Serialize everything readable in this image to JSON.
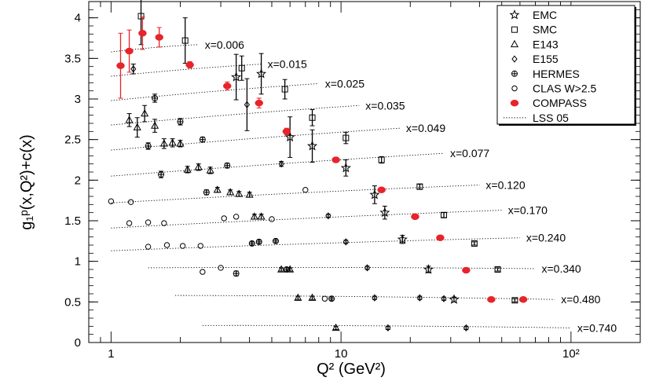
{
  "chart_data": {
    "type": "scatter",
    "title": "",
    "xlabel": "Q² (GeV²)",
    "ylabel": "g₁ᵖ(x,Q²)+c(x)",
    "x_scale": "log",
    "xlim": [
      0.8,
      200
    ],
    "ylim": [
      0,
      4.2
    ],
    "y_ticks": [
      0,
      0.5,
      1,
      1.5,
      2,
      2.5,
      3,
      3.5,
      4
    ],
    "y_tick_labels": [
      "0",
      "0.5",
      "1",
      "1.5",
      "2",
      "2.5",
      "3",
      "3.5",
      "4"
    ],
    "x_tick_labels": [
      {
        "value": 1,
        "label": "1"
      },
      {
        "value": 10,
        "label": "10"
      },
      {
        "value": 100,
        "label": "10²"
      }
    ],
    "grid": false,
    "legend_position": "top-right",
    "legend": [
      {
        "name": "EMC",
        "marker": "star"
      },
      {
        "name": "SMC",
        "marker": "square"
      },
      {
        "name": "E143",
        "marker": "triangle"
      },
      {
        "name": "E155",
        "marker": "diamond"
      },
      {
        "name": "HERMES",
        "marker": "cross-circle"
      },
      {
        "name": "CLAS W>2.5",
        "marker": "circle"
      },
      {
        "name": "COMPASS",
        "marker": "red-dot"
      },
      {
        "name": "LSS 05",
        "marker": "dotted-line"
      }
    ],
    "curves": [
      {
        "label": "x=0.006",
        "xrange": [
          1.0,
          2.4
        ],
        "y": [
          3.58,
          3.67
        ]
      },
      {
        "label": "x=0.015",
        "xrange": [
          1.0,
          4.5
        ],
        "y": [
          3.28,
          3.43
        ]
      },
      {
        "label": "x=0.025",
        "xrange": [
          1.0,
          8.0
        ],
        "y": [
          2.98,
          3.19
        ]
      },
      {
        "label": "x=0.035",
        "xrange": [
          1.0,
          12.0
        ],
        "y": [
          2.68,
          2.92
        ]
      },
      {
        "label": "x=0.049",
        "xrange": [
          1.0,
          18.0
        ],
        "y": [
          2.37,
          2.64
        ]
      },
      {
        "label": "x=0.077",
        "xrange": [
          1.0,
          28.0
        ],
        "y": [
          2.05,
          2.33
        ]
      },
      {
        "label": "x=0.120",
        "xrange": [
          1.0,
          40.0
        ],
        "y": [
          1.72,
          1.94
        ]
      },
      {
        "label": "x=0.170",
        "xrange": [
          1.0,
          50.0
        ],
        "y": [
          1.41,
          1.63
        ]
      },
      {
        "label": "x=0.240",
        "xrange": [
          1.0,
          60.0
        ],
        "y": [
          1.13,
          1.29
        ]
      },
      {
        "label": "x=0.340",
        "xrange": [
          1.45,
          70.0
        ],
        "y": [
          0.92,
          0.91
        ]
      },
      {
        "label": "x=0.480",
        "xrange": [
          1.9,
          85.0
        ],
        "y": [
          0.58,
          0.53
        ]
      },
      {
        "label": "x=0.740",
        "xrange": [
          2.5,
          100.0
        ],
        "y": [
          0.21,
          0.18
        ]
      }
    ],
    "series": [
      {
        "name": "EMC",
        "points": [
          [
            3.5,
            3.27,
            0.28
          ],
          [
            4.5,
            3.31,
            0.25
          ],
          [
            6.0,
            2.53,
            0.25
          ],
          [
            7.5,
            2.42,
            0.2
          ],
          [
            10.5,
            2.15,
            0.1
          ],
          [
            14.0,
            1.82,
            0.11
          ],
          [
            15.5,
            1.6,
            0.08
          ],
          [
            18.5,
            1.27,
            0.05
          ],
          [
            24.0,
            0.9,
            0.04
          ],
          [
            31.0,
            0.53,
            0.03
          ]
        ]
      },
      {
        "name": "SMC",
        "points": [
          [
            1.35,
            4.02,
            0.35
          ],
          [
            2.1,
            3.72,
            0.28
          ],
          [
            3.7,
            3.38,
            0.15
          ],
          [
            5.7,
            3.12,
            0.12
          ],
          [
            7.5,
            2.77,
            0.1
          ],
          [
            10.5,
            2.52,
            0.07
          ],
          [
            15.0,
            2.25,
            0.04
          ],
          [
            22.0,
            1.92,
            0.03
          ],
          [
            28.0,
            1.57,
            0.03
          ],
          [
            38.0,
            1.22,
            0.02
          ],
          [
            48.0,
            0.9,
            0.02
          ],
          [
            57.0,
            0.52,
            0.02
          ]
        ]
      },
      {
        "name": "E143",
        "points": [
          [
            1.2,
            2.74,
            0.08
          ],
          [
            1.3,
            2.65,
            0.12
          ],
          [
            1.4,
            2.82,
            0.1
          ],
          [
            1.55,
            2.67,
            0.08
          ],
          [
            1.7,
            2.45,
            0.06
          ],
          [
            1.85,
            2.46,
            0.05
          ],
          [
            2.0,
            2.45,
            0.04
          ],
          [
            2.15,
            2.13,
            0.04
          ],
          [
            2.4,
            2.16,
            0.04
          ],
          [
            2.7,
            2.12,
            0.04
          ],
          [
            2.9,
            1.88,
            0.03
          ],
          [
            3.3,
            1.85,
            0.03
          ],
          [
            3.6,
            1.83,
            0.03
          ],
          [
            4.0,
            1.82,
            0.03
          ],
          [
            4.2,
            1.55,
            0.03
          ],
          [
            4.5,
            1.55,
            0.03
          ],
          [
            5.5,
            0.9,
            0.02
          ],
          [
            6.0,
            0.9,
            0.02
          ],
          [
            6.5,
            0.55,
            0.02
          ],
          [
            7.5,
            0.55,
            0.02
          ],
          [
            9.5,
            0.18,
            0.02
          ]
        ]
      },
      {
        "name": "E155",
        "points": [
          [
            1.25,
            3.37,
            0.06
          ],
          [
            3.9,
            2.93,
            0.32
          ],
          [
            5.5,
            2.2,
            0.03
          ],
          [
            8.8,
            1.56,
            0.02
          ],
          [
            10.5,
            1.24,
            0.02
          ],
          [
            13.0,
            0.92,
            0.02
          ],
          [
            14.0,
            0.55,
            0.02
          ],
          [
            16.0,
            0.18,
            0.02
          ],
          [
            35.0,
            0.18,
            0.02
          ],
          [
            22.0,
            0.55,
            0.02
          ],
          [
            28.0,
            0.54,
            0.02
          ]
        ]
      },
      {
        "name": "HERMES",
        "points": [
          [
            1.55,
            3.01,
            0.05
          ],
          [
            1.45,
            2.42,
            0.04
          ],
          [
            2.0,
            2.72,
            0.04
          ],
          [
            2.5,
            2.5,
            0.03
          ],
          [
            1.65,
            2.07,
            0.04
          ],
          [
            2.6,
            1.85,
            0.03
          ],
          [
            3.2,
            2.18,
            0.03
          ],
          [
            3.5,
            0.85,
            0.03
          ],
          [
            5.2,
            1.25,
            0.02
          ],
          [
            4.1,
            1.22,
            0.02
          ],
          [
            4.4,
            1.24,
            0.02
          ],
          [
            5.8,
            0.9,
            0.02
          ],
          [
            9.1,
            0.54,
            0.02
          ]
        ]
      },
      {
        "name": "CLAS W>2.5",
        "points": [
          [
            1.0,
            1.74
          ],
          [
            1.22,
            1.73
          ],
          [
            1.2,
            1.47
          ],
          [
            1.45,
            1.48
          ],
          [
            1.7,
            1.47
          ],
          [
            1.45,
            1.18
          ],
          [
            1.75,
            1.2
          ],
          [
            2.05,
            1.19
          ],
          [
            2.45,
            1.19
          ],
          [
            2.5,
            0.87
          ],
          [
            3.0,
            0.92
          ],
          [
            3.1,
            1.53
          ],
          [
            3.5,
            1.55
          ],
          [
            5.0,
            1.52
          ],
          [
            7.0,
            1.88
          ],
          [
            8.5,
            0.54
          ]
        ]
      },
      {
        "name": "COMPASS",
        "points": [
          [
            1.1,
            3.41,
            0.4
          ],
          [
            1.2,
            3.59,
            0.26
          ],
          [
            1.37,
            3.81,
            0.2
          ],
          [
            1.62,
            3.76,
            0.12
          ],
          [
            2.2,
            3.42,
            0.04
          ],
          [
            3.2,
            3.16,
            0.05
          ],
          [
            4.4,
            2.95,
            0.06
          ],
          [
            5.8,
            2.6,
            0.04
          ],
          [
            9.5,
            2.25,
            0.02
          ],
          [
            15.0,
            1.88,
            0.02
          ],
          [
            21.0,
            1.55,
            0.02
          ],
          [
            27.0,
            1.29,
            0.02
          ],
          [
            35.0,
            0.89,
            0.02
          ],
          [
            45.0,
            0.53,
            0.02
          ],
          [
            62.0,
            0.53,
            0.02
          ]
        ]
      }
    ]
  }
}
